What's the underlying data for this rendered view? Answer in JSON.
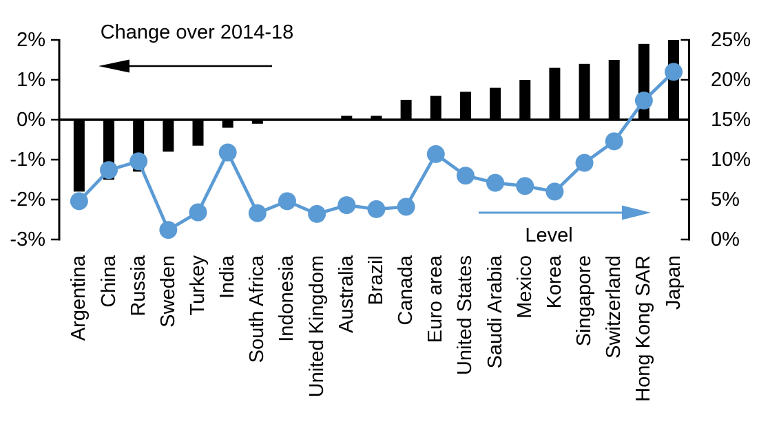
{
  "chart_data": {
    "type": "combo-bar-line",
    "title": "",
    "categories": [
      "Argentina",
      "China",
      "Russia",
      "Sweden",
      "Turkey",
      "India",
      "South Africa",
      "Indonesia",
      "United Kingdom",
      "Australia",
      "Brazil",
      "Canada",
      "Euro area",
      "United States",
      "Saudi Arabia",
      "Mexico",
      "Korea",
      "Singapore",
      "Switzerland",
      "Hong Kong SAR",
      "Japan"
    ],
    "series": [
      {
        "name": "Change over 2014-18",
        "type": "bar",
        "axis": "left",
        "unit": "percentage points",
        "color": "#000000",
        "values": [
          -1.8,
          -1.5,
          -1.3,
          -0.8,
          -0.65,
          -0.2,
          -0.1,
          0,
          0,
          0.1,
          0.1,
          0.5,
          0.6,
          0.7,
          0.8,
          1.0,
          1.3,
          1.4,
          1.5,
          1.9,
          2.0
        ]
      },
      {
        "name": "Level",
        "type": "line",
        "axis": "right",
        "unit": "%",
        "color": "#5B9BD5",
        "values": [
          4.8,
          8.7,
          9.8,
          1.2,
          3.4,
          10.9,
          3.3,
          4.8,
          3.2,
          4.3,
          3.8,
          4.1,
          10.7,
          8.0,
          7.1,
          6.7,
          6.0,
          9.6,
          12.3,
          17.4,
          21.0
        ]
      }
    ],
    "left_axis": {
      "tick_labels": [
        "2%",
        "1%",
        "0%",
        "-1%",
        "-2%",
        "-3%"
      ],
      "tick_values": [
        2,
        1,
        0,
        -1,
        -2,
        -3
      ],
      "min": -3,
      "max": 2
    },
    "right_axis": {
      "tick_labels": [
        "25%",
        "20%",
        "15%",
        "10%",
        "5%",
        "0%"
      ],
      "tick_values": [
        25,
        20,
        15,
        10,
        5,
        0
      ],
      "min": 0,
      "max": 25
    },
    "annotations": {
      "bar_label": "Change over 2014-18",
      "bar_arrow_direction": "left",
      "line_label": "Level",
      "line_arrow_direction": "right"
    },
    "colors": {
      "bar": "#000000",
      "line": "#5B9BD5",
      "axis": "#000000",
      "background": "#FFFFFF"
    },
    "grid": false,
    "legend_position": "in-plot annotations with arrows"
  }
}
